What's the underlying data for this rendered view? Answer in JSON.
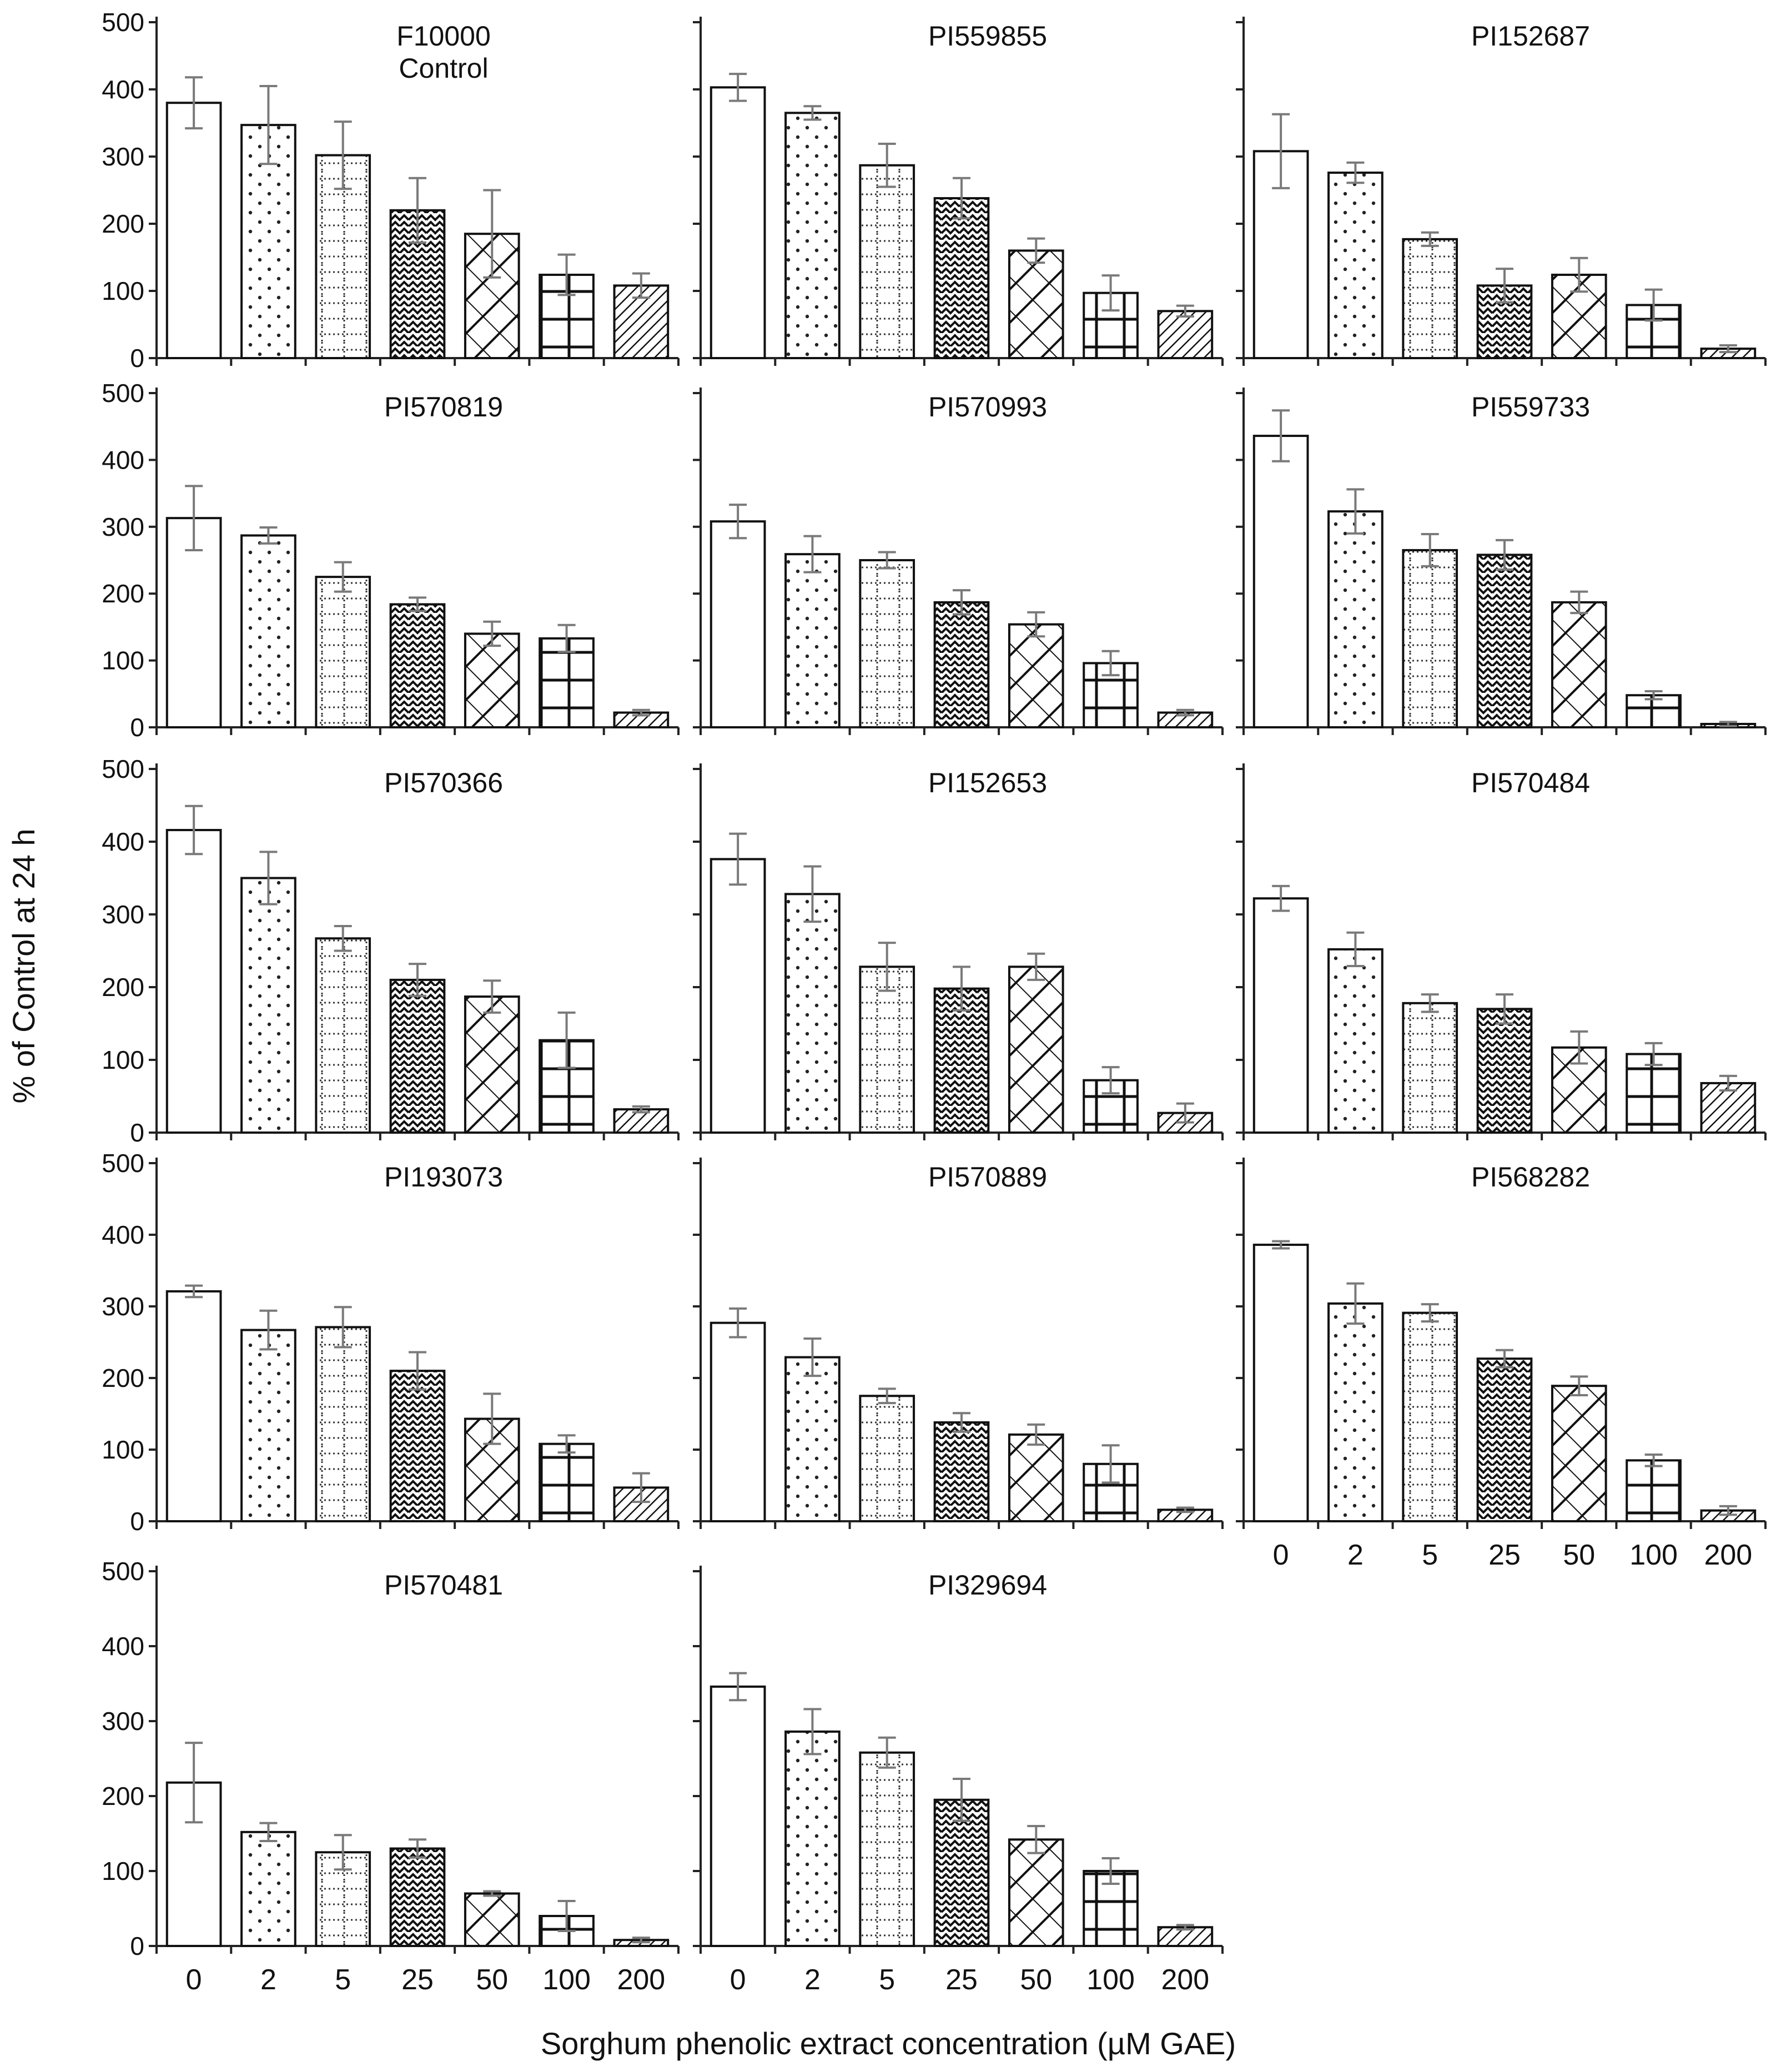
{
  "chart_data": {
    "type": "bar",
    "ylabel": "% of Control at 24 h",
    "xlabel": "Sorghum phenolic extract concentration (µM GAE)",
    "categories": [
      "0",
      "2",
      "5",
      "25",
      "50",
      "100",
      "200"
    ],
    "ylim": [
      0,
      500
    ],
    "yticks": [
      0,
      100,
      200,
      300,
      400,
      500
    ],
    "bar_patterns": [
      "open",
      "dots",
      "dotted-grid",
      "zigzag",
      "diagonal-lattice",
      "grid",
      "hatch"
    ],
    "error_bar_color": "#7a7a7a",
    "panels": [
      {
        "title": "F10000",
        "subtitle": "Control",
        "values": [
          380,
          347,
          302,
          220,
          185,
          124,
          108
        ],
        "errors": [
          38,
          58,
          50,
          48,
          65,
          30,
          18
        ]
      },
      {
        "title": "PI559855",
        "values": [
          403,
          365,
          287,
          238,
          160,
          97,
          70
        ],
        "errors": [
          20,
          10,
          32,
          30,
          18,
          26,
          8
        ]
      },
      {
        "title": "PI152687",
        "values": [
          308,
          276,
          177,
          108,
          124,
          79,
          14
        ],
        "errors": [
          55,
          15,
          10,
          25,
          25,
          23,
          5
        ]
      },
      {
        "title": "PI570819",
        "values": [
          313,
          287,
          225,
          184,
          140,
          133,
          22
        ],
        "errors": [
          48,
          12,
          22,
          10,
          18,
          20,
          4
        ]
      },
      {
        "title": "PI570993",
        "values": [
          308,
          259,
          250,
          187,
          154,
          96,
          22
        ],
        "errors": [
          25,
          27,
          12,
          18,
          18,
          18,
          4
        ]
      },
      {
        "title": "PI559733",
        "values": [
          436,
          323,
          265,
          258,
          187,
          48,
          5
        ],
        "errors": [
          38,
          33,
          24,
          22,
          16,
          6,
          3
        ]
      },
      {
        "title": "PI570366",
        "values": [
          416,
          350,
          267,
          210,
          187,
          127,
          32
        ],
        "errors": [
          33,
          36,
          17,
          22,
          22,
          38,
          4
        ]
      },
      {
        "title": "PI152653",
        "values": [
          376,
          328,
          228,
          198,
          228,
          72,
          27
        ],
        "errors": [
          35,
          38,
          33,
          30,
          18,
          18,
          13
        ]
      },
      {
        "title": "PI570484",
        "values": [
          322,
          252,
          178,
          170,
          117,
          108,
          68
        ],
        "errors": [
          17,
          23,
          12,
          20,
          22,
          15,
          10
        ]
      },
      {
        "title": "PI193073",
        "values": [
          321,
          267,
          271,
          210,
          143,
          108,
          47
        ],
        "errors": [
          8,
          27,
          28,
          26,
          35,
          12,
          20
        ]
      },
      {
        "title": "PI570889",
        "values": [
          277,
          229,
          175,
          138,
          121,
          80,
          16
        ],
        "errors": [
          20,
          26,
          10,
          13,
          14,
          26,
          3
        ]
      },
      {
        "title": "PI568282",
        "values": [
          386,
          304,
          291,
          227,
          189,
          85,
          15
        ],
        "errors": [
          5,
          28,
          12,
          12,
          13,
          8,
          6
        ]
      },
      {
        "title": "PI570481",
        "values": [
          218,
          152,
          125,
          130,
          70,
          40,
          8
        ],
        "errors": [
          53,
          12,
          23,
          12,
          3,
          20,
          3
        ]
      },
      {
        "title": "PI329694",
        "values": [
          346,
          286,
          258,
          195,
          142,
          100,
          25
        ],
        "errors": [
          18,
          30,
          20,
          28,
          18,
          17,
          3
        ]
      }
    ]
  }
}
